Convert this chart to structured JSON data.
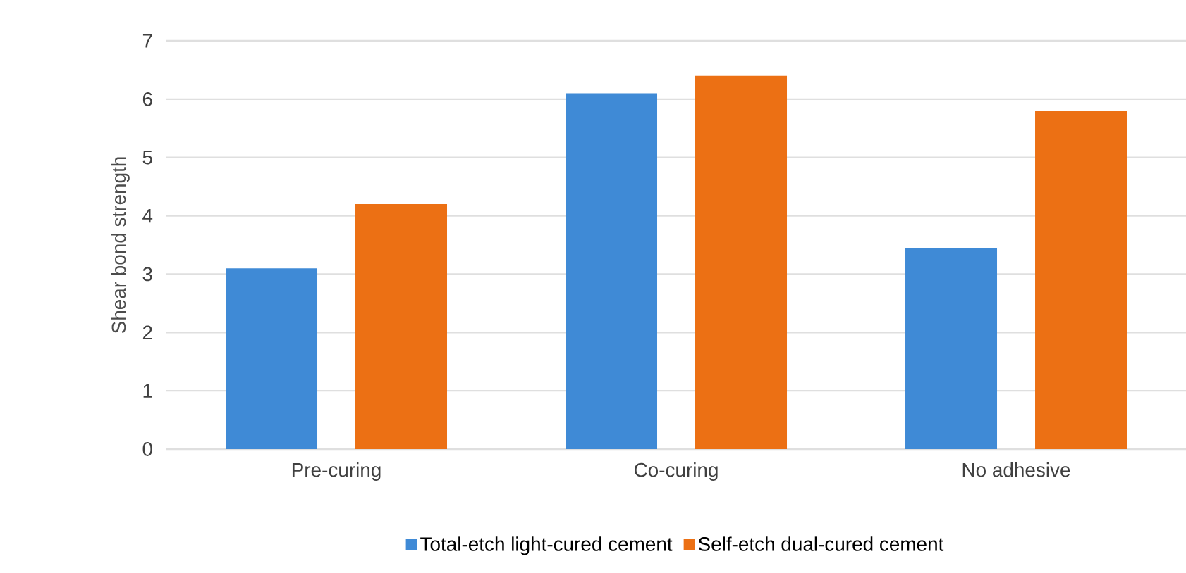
{
  "chart_data": {
    "type": "bar",
    "ylabel": "Shear bond strength",
    "categories": [
      "Pre-curing",
      "Co-curing",
      "No adhesive"
    ],
    "series": [
      {
        "name": "Total-etch light-cured cement",
        "color": "#3f8ad6",
        "values": [
          3.1,
          6.1,
          3.45
        ]
      },
      {
        "name": "Self-etch dual-cured cement",
        "color": "#ec7014",
        "values": [
          4.2,
          6.4,
          5.8
        ]
      }
    ],
    "ylim": [
      0,
      7
    ],
    "yticks": [
      0,
      1,
      2,
      3,
      4,
      5,
      6,
      7
    ],
    "grid": "y",
    "legend": "bottom"
  }
}
